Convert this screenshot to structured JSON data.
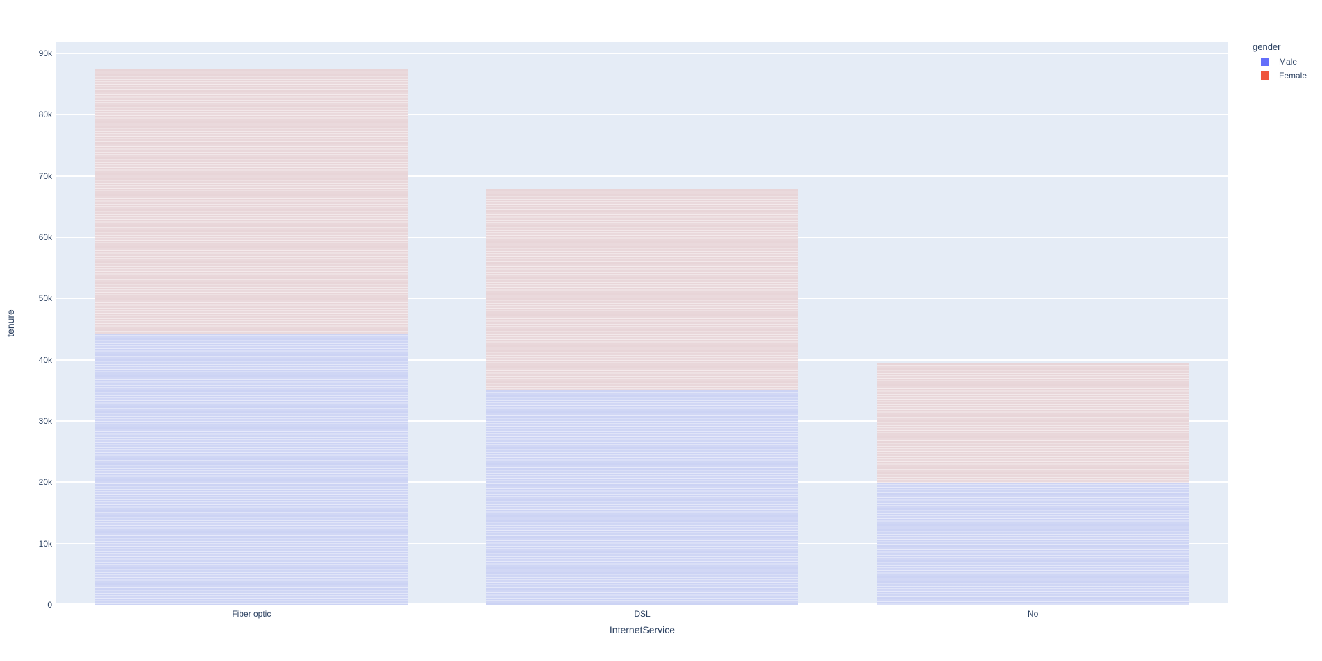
{
  "chart_data": {
    "type": "bar",
    "barmode": "stack",
    "title": "",
    "xlabel": "InternetService",
    "ylabel": "tenure",
    "categories": [
      "Fiber optic",
      "DSL",
      "No"
    ],
    "series": [
      {
        "name": "Male",
        "color": "#636efa",
        "fill": "#ccd3f4",
        "values": [
          44200,
          35000,
          19900
        ]
      },
      {
        "name": "Female",
        "color": "#ef553b",
        "fill": "#e8d5d8",
        "values": [
          43200,
          32800,
          19500
        ]
      }
    ],
    "stack_totals": [
      87400,
      67800,
      39400
    ],
    "ylim": [
      0,
      91900
    ],
    "yticks": {
      "values": [
        0,
        10000,
        20000,
        30000,
        40000,
        50000,
        60000,
        70000,
        80000,
        90000
      ],
      "labels": [
        "0",
        "10k",
        "20k",
        "30k",
        "40k",
        "50k",
        "60k",
        "70k",
        "80k",
        "90k"
      ]
    },
    "legend": {
      "title": "gender",
      "position": "top-right"
    },
    "grid": true,
    "colors": {
      "plot_bgcolor": "#e5ecf6",
      "paper_bgcolor": "#ffffff",
      "gridline": "#ffffff",
      "font": "#2a3f5f"
    }
  }
}
